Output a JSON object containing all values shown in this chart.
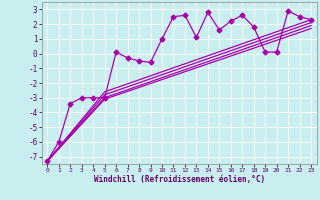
{
  "xlabel": "Windchill (Refroidissement éolien,°C)",
  "xlim": [
    -0.5,
    23.5
  ],
  "ylim": [
    -7.5,
    3.5
  ],
  "xticks": [
    0,
    1,
    2,
    3,
    4,
    5,
    6,
    7,
    8,
    9,
    10,
    11,
    12,
    13,
    14,
    15,
    16,
    17,
    18,
    19,
    20,
    21,
    22,
    23
  ],
  "yticks": [
    -7,
    -6,
    -5,
    -4,
    -3,
    -2,
    -1,
    0,
    1,
    2,
    3
  ],
  "background_color": "#c8eef0",
  "grid_color": "#aadddd",
  "line_color": "#aa00aa",
  "series": [
    {
      "x": [
        0,
        1,
        2,
        3,
        4,
        5,
        6,
        7,
        8,
        9,
        10,
        11,
        12,
        13,
        14,
        15,
        16,
        17,
        18,
        19,
        20,
        21,
        22,
        23
      ],
      "y": [
        -7.3,
        -6.0,
        -3.4,
        -3.0,
        -3.0,
        -3.0,
        0.1,
        -0.3,
        -0.5,
        -0.6,
        1.0,
        2.5,
        2.6,
        1.1,
        2.8,
        1.6,
        2.2,
        2.6,
        1.8,
        0.1,
        0.1,
        2.9,
        2.5,
        2.3
      ],
      "marker": "D",
      "markersize": 2.5,
      "linewidth": 0.9
    },
    {
      "x": [
        0,
        5,
        23
      ],
      "y": [
        -7.3,
        -2.6,
        2.3
      ],
      "linewidth": 0.9
    },
    {
      "x": [
        0,
        5,
        23
      ],
      "y": [
        -7.3,
        -2.8,
        2.1
      ],
      "linewidth": 0.9
    },
    {
      "x": [
        0,
        5,
        23
      ],
      "y": [
        -7.3,
        -3.0,
        1.9
      ],
      "linewidth": 0.9
    },
    {
      "x": [
        0,
        5,
        23
      ],
      "y": [
        -7.3,
        -3.1,
        1.7
      ],
      "linewidth": 0.9
    }
  ]
}
